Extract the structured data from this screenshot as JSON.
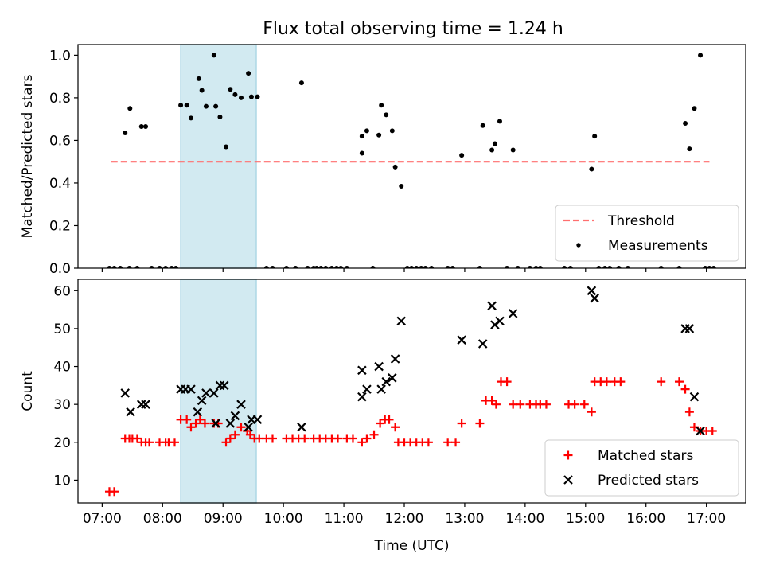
{
  "title": "Flux total observing time = 1.24 h",
  "colors": {
    "threshold": "#ff6f6f",
    "measurement": "#000000",
    "matched": "#ff0000",
    "predicted": "#000000",
    "shade": "#add8e6"
  },
  "chart_data": [
    {
      "type": "scatter",
      "ylabel": "Matched/Predicted stars",
      "xlabel": "",
      "xlim": [
        6.6,
        17.65
      ],
      "ylim": [
        0,
        1.05
      ],
      "yticks": [
        0.0,
        0.2,
        0.4,
        0.6,
        0.8,
        1.0
      ],
      "ytick_labels": [
        "0.0",
        "0.2",
        "0.4",
        "0.6",
        "0.8",
        "1.0"
      ],
      "shaded_span": [
        8.3,
        9.55
      ],
      "legend_position": "lower-right",
      "series": [
        {
          "name": "Threshold",
          "kind": "dashed-line",
          "x": [
            7.15,
            17.05
          ],
          "y": [
            0.5,
            0.5
          ]
        },
        {
          "name": "Measurements",
          "kind": "dots",
          "points": [
            [
              7.12,
              0
            ],
            [
              7.2,
              0
            ],
            [
              7.3,
              0
            ],
            [
              7.38,
              0.635
            ],
            [
              7.45,
              0
            ],
            [
              7.46,
              0.75
            ],
            [
              7.58,
              0
            ],
            [
              7.65,
              0.665
            ],
            [
              7.72,
              0.665
            ],
            [
              7.82,
              0
            ],
            [
              7.95,
              0
            ],
            [
              8.05,
              0
            ],
            [
              8.15,
              0
            ],
            [
              8.22,
              0
            ],
            [
              8.3,
              0.765
            ],
            [
              8.4,
              0.765
            ],
            [
              8.47,
              0.705
            ],
            [
              8.6,
              0.89
            ],
            [
              8.65,
              0.835
            ],
            [
              8.72,
              0.76
            ],
            [
              8.85,
              1.0
            ],
            [
              8.88,
              0.76
            ],
            [
              8.95,
              0.71
            ],
            [
              9.05,
              0.57
            ],
            [
              9.12,
              0.84
            ],
            [
              9.2,
              0.815
            ],
            [
              9.3,
              0.8
            ],
            [
              9.42,
              0.915
            ],
            [
              9.47,
              0.805
            ],
            [
              9.57,
              0.805
            ],
            [
              9.72,
              0
            ],
            [
              9.82,
              0
            ],
            [
              10.05,
              0
            ],
            [
              10.2,
              0
            ],
            [
              10.3,
              0.87
            ],
            [
              10.4,
              0
            ],
            [
              10.5,
              0
            ],
            [
              10.55,
              0
            ],
            [
              10.62,
              0
            ],
            [
              10.7,
              0
            ],
            [
              10.8,
              0
            ],
            [
              10.88,
              0
            ],
            [
              10.95,
              0
            ],
            [
              11.05,
              0
            ],
            [
              11.3,
              0.62
            ],
            [
              11.3,
              0.54
            ],
            [
              11.38,
              0.645
            ],
            [
              11.48,
              0
            ],
            [
              11.58,
              0.625
            ],
            [
              11.62,
              0.765
            ],
            [
              11.7,
              0.72
            ],
            [
              11.8,
              0.645
            ],
            [
              11.85,
              0.475
            ],
            [
              11.95,
              0.385
            ],
            [
              12.05,
              0
            ],
            [
              12.12,
              0
            ],
            [
              12.2,
              0
            ],
            [
              12.28,
              0
            ],
            [
              12.35,
              0
            ],
            [
              12.45,
              0
            ],
            [
              12.72,
              0
            ],
            [
              12.8,
              0
            ],
            [
              12.95,
              0.53
            ],
            [
              13.25,
              0
            ],
            [
              13.3,
              0.67
            ],
            [
              13.45,
              0.555
            ],
            [
              13.5,
              0.585
            ],
            [
              13.58,
              0.69
            ],
            [
              13.7,
              0
            ],
            [
              13.8,
              0.555
            ],
            [
              13.88,
              0
            ],
            [
              14.08,
              0
            ],
            [
              14.18,
              0
            ],
            [
              14.25,
              0
            ],
            [
              14.65,
              0
            ],
            [
              14.75,
              0
            ],
            [
              15.1,
              0.465
            ],
            [
              15.15,
              0.62
            ],
            [
              15.22,
              0
            ],
            [
              15.32,
              0
            ],
            [
              15.4,
              0
            ],
            [
              15.55,
              0
            ],
            [
              15.7,
              0
            ],
            [
              16.25,
              0
            ],
            [
              16.55,
              0
            ],
            [
              16.65,
              0.68
            ],
            [
              16.72,
              0.56
            ],
            [
              16.8,
              0.75
            ],
            [
              16.9,
              1.0
            ],
            [
              16.98,
              0
            ],
            [
              17.05,
              0
            ],
            [
              17.12,
              0
            ]
          ]
        }
      ]
    },
    {
      "type": "scatter",
      "ylabel": "Count",
      "xlabel": "Time (UTC)",
      "xlim": [
        6.6,
        17.65
      ],
      "ylim": [
        4,
        63
      ],
      "yticks": [
        10,
        20,
        30,
        40,
        50,
        60
      ],
      "ytick_labels": [
        "10",
        "20",
        "30",
        "40",
        "50",
        "60"
      ],
      "xticks": [
        7,
        8,
        9,
        10,
        11,
        12,
        13,
        14,
        15,
        16,
        17
      ],
      "xtick_labels": [
        "07:00",
        "08:00",
        "09:00",
        "10:00",
        "11:00",
        "12:00",
        "13:00",
        "14:00",
        "15:00",
        "16:00",
        "17:00"
      ],
      "shaded_span": [
        8.3,
        9.55
      ],
      "legend_position": "lower-right",
      "series": [
        {
          "name": "Matched stars",
          "kind": "plus",
          "points": [
            [
              7.12,
              7
            ],
            [
              7.2,
              7
            ],
            [
              7.38,
              21
            ],
            [
              7.45,
              21
            ],
            [
              7.5,
              21
            ],
            [
              7.58,
              21
            ],
            [
              7.65,
              20
            ],
            [
              7.72,
              20
            ],
            [
              7.78,
              20
            ],
            [
              7.95,
              20
            ],
            [
              8.05,
              20
            ],
            [
              8.1,
              20
            ],
            [
              8.2,
              20
            ],
            [
              8.3,
              26
            ],
            [
              8.4,
              26
            ],
            [
              8.47,
              24
            ],
            [
              8.55,
              25
            ],
            [
              8.62,
              26
            ],
            [
              8.7,
              25
            ],
            [
              8.85,
              25
            ],
            [
              8.92,
              25
            ],
            [
              9.05,
              20
            ],
            [
              9.12,
              21
            ],
            [
              9.2,
              22
            ],
            [
              9.3,
              24
            ],
            [
              9.4,
              23
            ],
            [
              9.45,
              22
            ],
            [
              9.52,
              21
            ],
            [
              9.6,
              21
            ],
            [
              9.72,
              21
            ],
            [
              9.82,
              21
            ],
            [
              10.05,
              21
            ],
            [
              10.15,
              21
            ],
            [
              10.25,
              21
            ],
            [
              10.35,
              21
            ],
            [
              10.5,
              21
            ],
            [
              10.6,
              21
            ],
            [
              10.7,
              21
            ],
            [
              10.8,
              21
            ],
            [
              10.9,
              21
            ],
            [
              11.05,
              21
            ],
            [
              11.15,
              21
            ],
            [
              11.3,
              20
            ],
            [
              11.38,
              21
            ],
            [
              11.5,
              22
            ],
            [
              11.6,
              25
            ],
            [
              11.68,
              26
            ],
            [
              11.75,
              26
            ],
            [
              11.85,
              24
            ],
            [
              11.9,
              20
            ],
            [
              12.0,
              20
            ],
            [
              12.1,
              20
            ],
            [
              12.2,
              20
            ],
            [
              12.3,
              20
            ],
            [
              12.4,
              20
            ],
            [
              12.72,
              20
            ],
            [
              12.85,
              20
            ],
            [
              12.95,
              25
            ],
            [
              13.25,
              25
            ],
            [
              13.35,
              31
            ],
            [
              13.45,
              31
            ],
            [
              13.52,
              30
            ],
            [
              13.6,
              36
            ],
            [
              13.7,
              36
            ],
            [
              13.8,
              30
            ],
            [
              13.92,
              30
            ],
            [
              14.08,
              30
            ],
            [
              14.18,
              30
            ],
            [
              14.25,
              30
            ],
            [
              14.35,
              30
            ],
            [
              14.72,
              30
            ],
            [
              14.82,
              30
            ],
            [
              14.98,
              30
            ],
            [
              15.1,
              28
            ],
            [
              15.15,
              36
            ],
            [
              15.25,
              36
            ],
            [
              15.35,
              36
            ],
            [
              15.48,
              36
            ],
            [
              15.58,
              36
            ],
            [
              16.25,
              36
            ],
            [
              16.55,
              36
            ],
            [
              16.65,
              34
            ],
            [
              16.72,
              28
            ],
            [
              16.8,
              24
            ],
            [
              16.9,
              23
            ],
            [
              17.0,
              23
            ],
            [
              17.1,
              23
            ]
          ]
        },
        {
          "name": "Predicted stars",
          "kind": "x",
          "points": [
            [
              7.38,
              33
            ],
            [
              7.47,
              28
            ],
            [
              7.65,
              30
            ],
            [
              7.72,
              30
            ],
            [
              8.3,
              34
            ],
            [
              8.38,
              34
            ],
            [
              8.47,
              34
            ],
            [
              8.58,
              28
            ],
            [
              8.65,
              31
            ],
            [
              8.72,
              33
            ],
            [
              8.85,
              33
            ],
            [
              8.88,
              25
            ],
            [
              8.95,
              35
            ],
            [
              9.02,
              35
            ],
            [
              9.12,
              25
            ],
            [
              9.2,
              27
            ],
            [
              9.3,
              30
            ],
            [
              9.42,
              24
            ],
            [
              9.47,
              26
            ],
            [
              9.57,
              26
            ],
            [
              10.3,
              24
            ],
            [
              11.3,
              32
            ],
            [
              11.3,
              39
            ],
            [
              11.38,
              34
            ],
            [
              11.58,
              40
            ],
            [
              11.62,
              34
            ],
            [
              11.7,
              36
            ],
            [
              11.8,
              37
            ],
            [
              11.85,
              42
            ],
            [
              11.95,
              52
            ],
            [
              12.95,
              47
            ],
            [
              13.3,
              46
            ],
            [
              13.45,
              56
            ],
            [
              13.5,
              51
            ],
            [
              13.58,
              52
            ],
            [
              13.8,
              54
            ],
            [
              15.1,
              60
            ],
            [
              15.15,
              58
            ],
            [
              16.65,
              50
            ],
            [
              16.72,
              50
            ],
            [
              16.8,
              32
            ],
            [
              16.9,
              23
            ]
          ]
        }
      ]
    }
  ]
}
